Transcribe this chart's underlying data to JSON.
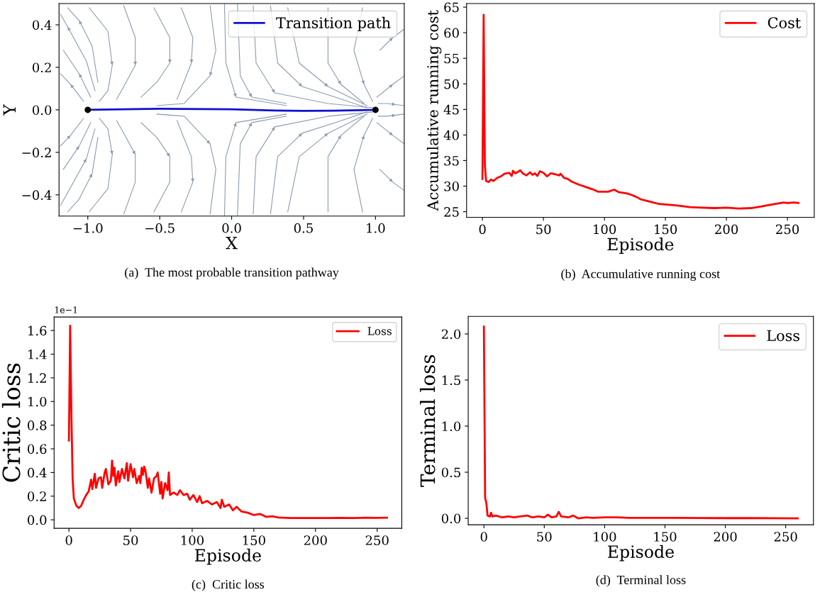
{
  "chart_data": [
    {
      "type": "line",
      "xlabel": "X",
      "ylabel": "Y",
      "xlim": [
        -1.2,
        1.2
      ],
      "ylim": [
        -0.5,
        0.5
      ],
      "xticks": [
        {
          "value": -1.0,
          "label": "−1.0"
        },
        {
          "value": -0.5,
          "label": "−0.5"
        },
        {
          "value": 0.0,
          "label": "0.0"
        },
        {
          "value": 0.5,
          "label": "0.5"
        },
        {
          "value": 1.0,
          "label": "1.0"
        }
      ],
      "yticks": [
        {
          "value": -0.4,
          "label": "−0.4"
        },
        {
          "value": -0.2,
          "label": "−0.2"
        },
        {
          "value": 0.0,
          "label": "0.0"
        },
        {
          "value": 0.2,
          "label": "0.2"
        },
        {
          "value": 0.4,
          "label": "0.4"
        }
      ],
      "legend": "top right",
      "grid": false,
      "series": [
        {
          "name": "Transition path",
          "color": "#1010d0",
          "x": [
            -1,
            -0.5,
            0,
            0.3,
            0.5,
            0.7,
            1
          ],
          "values": [
            0,
            0.005,
            0.003,
            -0.003,
            -0.005,
            -0.004,
            0
          ]
        },
        {
          "type": "scatter",
          "color": "#000000",
          "x": [
            -1,
            1
          ],
          "values": [
            0,
            0
          ]
        },
        {
          "color": "#8a9bb0",
          "x": [
            -1.03,
            -1.12,
            -1.19
          ],
          "values": [
            0.04,
            0.12,
            0.17
          ]
        },
        {
          "color": "#8a9bb0",
          "x": [
            -0.98,
            -1.06,
            -1.17
          ],
          "values": [
            0.06,
            0.17,
            0.28
          ]
        },
        {
          "color": "#8a9bb0",
          "x": [
            -0.95,
            -1.01,
            -1.14,
            -1.19
          ],
          "values": [
            0.09,
            0.23,
            0.39,
            0.45
          ]
        },
        {
          "color": "#8a9bb0",
          "x": [
            -0.93,
            -0.97,
            -1.06,
            -1.14
          ],
          "values": [
            0.13,
            0.3,
            0.42,
            0.48
          ]
        },
        {
          "color": "#8a9bb0",
          "x": [
            -0.99,
            -0.86,
            -0.83,
            -0.86,
            -0.92
          ],
          "values": [
            0.48,
            0.37,
            0.21,
            0.09,
            0.04
          ]
        },
        {
          "color": "#8a9bb0",
          "x": [
            -0.75,
            -0.67,
            -0.67,
            -0.75,
            -0.8
          ],
          "values": [
            0.49,
            0.34,
            0.21,
            0.11,
            0.05
          ]
        },
        {
          "color": "#8a9bb0",
          "x": [
            -0.54,
            -0.43,
            -0.43,
            -0.52,
            -0.63
          ],
          "values": [
            0.48,
            0.34,
            0.22,
            0.13,
            0.06
          ]
        },
        {
          "color": "#8a9bb0",
          "x": [
            -0.35,
            -0.27,
            -0.28,
            -0.38
          ],
          "values": [
            0.48,
            0.34,
            0.22,
            0.05
          ]
        },
        {
          "color": "#8a9bb0",
          "x": [
            -0.15,
            -0.11,
            -0.15,
            -0.33,
            -0.52
          ],
          "values": [
            0.49,
            0.28,
            0.16,
            0.03,
            0.02
          ]
        },
        {
          "color": "#8a9bb0",
          "x": [
            -0.05,
            -0.04,
            0.03,
            0.38
          ],
          "values": [
            0.5,
            0.22,
            0.06,
            0.02
          ]
        },
        {
          "color": "#8a9bb0",
          "x": [
            0.04,
            0.06,
            0.14,
            0.38
          ],
          "values": [
            0.5,
            0.16,
            0.06,
            0.03
          ]
        },
        {
          "color": "#8a9bb0",
          "x": [
            0.15,
            0.17,
            0.3,
            0.67,
            0.98
          ],
          "values": [
            0.49,
            0.22,
            0.08,
            0.03,
            0.01
          ]
        },
        {
          "color": "#8a9bb0",
          "x": [
            0.27,
            0.32,
            0.49,
            0.72,
            0.94
          ],
          "values": [
            0.49,
            0.22,
            0.11,
            0.06,
            0.01
          ]
        },
        {
          "color": "#8a9bb0",
          "x": [
            0.39,
            0.47,
            0.67,
            0.94
          ],
          "values": [
            0.48,
            0.22,
            0.11,
            0.02
          ]
        },
        {
          "color": "#8a9bb0",
          "x": [
            0.67,
            0.67,
            0.76,
            0.92
          ],
          "values": [
            0.48,
            0.22,
            0.12,
            0.03
          ]
        },
        {
          "color": "#8a9bb0",
          "x": [
            0.91,
            0.85,
            0.92,
            0.98
          ],
          "values": [
            0.48,
            0.28,
            0.12,
            0.04
          ]
        },
        {
          "color": "#8a9bb0",
          "x": [
            1.03,
            1.12,
            1.2
          ],
          "values": [
            0.28,
            0.34,
            0.38
          ]
        },
        {
          "color": "#8a9bb0",
          "x": [
            1.01,
            1.12,
            1.2
          ],
          "values": [
            0.06,
            0.12,
            0.16
          ]
        },
        {
          "color": "#8a9bb0",
          "x": [
            1.02,
            1.08,
            1.14,
            1.2
          ],
          "values": [
            0.03,
            0.03,
            0.025,
            0.02
          ]
        },
        {
          "color": "#8a9bb0",
          "x": [
            -1.19,
            -1.12,
            -1.03
          ],
          "values": [
            -0.17,
            -0.12,
            -0.04
          ]
        },
        {
          "color": "#8a9bb0",
          "x": [
            -1.17,
            -1.06,
            -0.98
          ],
          "values": [
            -0.28,
            -0.17,
            -0.06
          ]
        },
        {
          "color": "#8a9bb0",
          "x": [
            -1.19,
            -1.14,
            -1.01,
            -0.95
          ],
          "values": [
            -0.45,
            -0.39,
            -0.23,
            -0.09
          ]
        },
        {
          "color": "#8a9bb0",
          "x": [
            -1.14,
            -1.06,
            -0.97,
            -0.93
          ],
          "values": [
            -0.48,
            -0.42,
            -0.3,
            -0.13
          ]
        },
        {
          "color": "#8a9bb0",
          "x": [
            -0.92,
            -0.86,
            -0.83,
            -0.86,
            -0.99
          ],
          "values": [
            -0.04,
            -0.09,
            -0.21,
            -0.37,
            -0.48
          ]
        },
        {
          "color": "#8a9bb0",
          "x": [
            -0.8,
            -0.75,
            -0.67,
            -0.67,
            -0.75
          ],
          "values": [
            -0.05,
            -0.11,
            -0.21,
            -0.34,
            -0.49
          ]
        },
        {
          "color": "#8a9bb0",
          "x": [
            -0.63,
            -0.52,
            -0.43,
            -0.43,
            -0.54
          ],
          "values": [
            -0.06,
            -0.13,
            -0.22,
            -0.34,
            -0.48
          ]
        },
        {
          "color": "#8a9bb0",
          "x": [
            -0.38,
            -0.28,
            -0.27,
            -0.35
          ],
          "values": [
            -0.05,
            -0.22,
            -0.34,
            -0.48
          ]
        },
        {
          "color": "#8a9bb0",
          "x": [
            -0.52,
            -0.33,
            -0.15,
            -0.11,
            -0.15
          ],
          "values": [
            -0.02,
            -0.03,
            -0.16,
            -0.28,
            -0.49
          ]
        },
        {
          "color": "#8a9bb0",
          "x": [
            -0.05,
            -0.04,
            0.03,
            0.38
          ],
          "values": [
            -0.5,
            -0.22,
            -0.06,
            -0.02
          ]
        },
        {
          "color": "#8a9bb0",
          "x": [
            0.04,
            0.06,
            0.14,
            0.38
          ],
          "values": [
            -0.5,
            -0.16,
            -0.06,
            -0.03
          ]
        },
        {
          "color": "#8a9bb0",
          "x": [
            0.15,
            0.17,
            0.3,
            0.67,
            0.98
          ],
          "values": [
            -0.49,
            -0.22,
            -0.08,
            -0.03,
            -0.01
          ]
        },
        {
          "color": "#8a9bb0",
          "x": [
            0.27,
            0.32,
            0.49,
            0.72,
            0.94
          ],
          "values": [
            -0.49,
            -0.22,
            -0.11,
            -0.06,
            -0.01
          ]
        },
        {
          "color": "#8a9bb0",
          "x": [
            0.39,
            0.47,
            0.67,
            0.94
          ],
          "values": [
            -0.48,
            -0.22,
            -0.11,
            -0.02
          ]
        },
        {
          "color": "#8a9bb0",
          "x": [
            0.67,
            0.67,
            0.76,
            0.92
          ],
          "values": [
            -0.48,
            -0.22,
            -0.12,
            -0.03
          ]
        },
        {
          "color": "#8a9bb0",
          "x": [
            0.91,
            0.85,
            0.92,
            0.98
          ],
          "values": [
            -0.48,
            -0.28,
            -0.12,
            -0.04
          ]
        },
        {
          "color": "#8a9bb0",
          "x": [
            1.03,
            1.12,
            1.2
          ],
          "values": [
            -0.28,
            -0.34,
            -0.38
          ]
        },
        {
          "color": "#8a9bb0",
          "x": [
            1.01,
            1.12,
            1.2
          ],
          "values": [
            -0.06,
            -0.12,
            -0.16
          ]
        },
        {
          "color": "#8a9bb0",
          "x": [
            1.02,
            1.08,
            1.14,
            1.2
          ],
          "values": [
            -0.03,
            -0.03,
            -0.025,
            -0.02
          ]
        }
      ],
      "annotations": [
        "(a)  The most probable transition pathway"
      ]
    },
    {
      "type": "line",
      "xlabel": "Episode",
      "ylabel": "Accumulative running cost",
      "xlim": [
        -13,
        272
      ],
      "ylim": [
        23.9,
        65.7
      ],
      "xticks": [
        0,
        50,
        100,
        150,
        200,
        250
      ],
      "yticks": [
        25,
        30,
        35,
        40,
        45,
        50,
        55,
        60,
        65
      ],
      "legend": "top right",
      "grid": false,
      "series": [
        {
          "name": "Cost",
          "color": "#ff0000",
          "x": [
            0,
            1,
            2,
            3,
            5,
            7,
            9,
            12,
            15,
            18,
            22,
            24,
            25,
            27,
            30,
            31,
            33,
            36,
            39,
            41,
            43,
            45,
            47,
            50,
            53,
            56,
            60,
            63,
            64,
            67,
            70,
            73,
            76,
            80,
            85,
            90,
            95,
            100,
            103,
            108,
            112,
            118,
            122,
            126,
            130,
            135,
            140,
            145,
            150,
            160,
            170,
            180,
            190,
            200,
            210,
            220,
            228,
            235,
            240,
            247,
            250,
            255,
            259
          ],
          "values": [
            31.4,
            63.5,
            34,
            31,
            30.8,
            31.3,
            31.0,
            31.6,
            31.9,
            32.4,
            32.6,
            32.0,
            33.0,
            32.5,
            32.9,
            33.1,
            32.5,
            32.1,
            32.7,
            32.2,
            32.5,
            32.0,
            32.9,
            32.6,
            31.9,
            32.5,
            32.3,
            32.1,
            32.4,
            31.6,
            31.4,
            30.9,
            30.6,
            30.2,
            29.8,
            29.4,
            28.9,
            28.9,
            28.9,
            29.3,
            28.8,
            28.6,
            28.3,
            27.9,
            27.4,
            27.1,
            26.8,
            26.5,
            26.4,
            26.2,
            25.9,
            25.8,
            25.7,
            25.8,
            25.6,
            25.7,
            26.0,
            26.3,
            26.5,
            26.8,
            26.7,
            26.8,
            26.7
          ]
        }
      ],
      "annotations": [
        "(b)  Accumulative running cost"
      ]
    },
    {
      "type": "line",
      "xlabel": "Episode",
      "ylabel": "Critic loss",
      "xlim": [
        -12,
        270
      ],
      "ylim": [
        -0.072,
        1.714
      ],
      "xticks": [
        0,
        50,
        100,
        150,
        200,
        250
      ],
      "yticks": [
        {
          "value": 0.0,
          "label": "0.0"
        },
        {
          "value": 0.2,
          "label": "0.2"
        },
        {
          "value": 0.4,
          "label": "0.4"
        },
        {
          "value": 0.6,
          "label": "0.6"
        },
        {
          "value": 0.8,
          "label": "0.8"
        },
        {
          "value": 1.0,
          "label": "1.0"
        },
        {
          "value": 1.2,
          "label": "1.2"
        },
        {
          "value": 1.4,
          "label": "1.4"
        },
        {
          "value": 1.6,
          "label": "1.6"
        }
      ],
      "legend": "top right",
      "grid": false,
      "series": [
        {
          "name": "Loss",
          "color": "#ff0000",
          "x": [
            0,
            1,
            2,
            3,
            4,
            6,
            8,
            10,
            12,
            14,
            16,
            18,
            19,
            21,
            22,
            24,
            26,
            27,
            29,
            30,
            32,
            34,
            35,
            36,
            37,
            38,
            40,
            41,
            43,
            45,
            47,
            48,
            50,
            52,
            53,
            55,
            57,
            58,
            59,
            60,
            61,
            62,
            64,
            65,
            67,
            69,
            71,
            72,
            74,
            75,
            76,
            78,
            80,
            81,
            82,
            85,
            88,
            90,
            93,
            96,
            98,
            101,
            104,
            106,
            108,
            112,
            116,
            120,
            123,
            124,
            126,
            130,
            133,
            136,
            140,
            145,
            150,
            155,
            160,
            165,
            170,
            180,
            190,
            200,
            210,
            220,
            230,
            240,
            250,
            258
          ],
          "values": [
            0.67,
            1.64,
            0.9,
            0.35,
            0.18,
            0.12,
            0.1,
            0.12,
            0.17,
            0.21,
            0.24,
            0.34,
            0.26,
            0.39,
            0.27,
            0.35,
            0.36,
            0.27,
            0.4,
            0.43,
            0.3,
            0.33,
            0.5,
            0.37,
            0.44,
            0.29,
            0.41,
            0.32,
            0.43,
            0.35,
            0.48,
            0.33,
            0.47,
            0.36,
            0.43,
            0.31,
            0.37,
            0.31,
            0.44,
            0.38,
            0.45,
            0.42,
            0.27,
            0.35,
            0.23,
            0.35,
            0.37,
            0.4,
            0.22,
            0.32,
            0.18,
            0.31,
            0.25,
            0.4,
            0.21,
            0.23,
            0.21,
            0.25,
            0.21,
            0.22,
            0.17,
            0.21,
            0.15,
            0.2,
            0.14,
            0.16,
            0.13,
            0.15,
            0.1,
            0.17,
            0.11,
            0.13,
            0.08,
            0.11,
            0.07,
            0.06,
            0.04,
            0.05,
            0.025,
            0.03,
            0.02,
            0.015,
            0.015,
            0.015,
            0.015,
            0.017,
            0.015,
            0.018,
            0.017,
            0.018
          ]
        }
      ],
      "annotations": [
        "1e−1",
        "(c)  Critic loss"
      ]
    },
    {
      "type": "line",
      "xlabel": "Episode",
      "ylabel": "Terminal loss",
      "xlim": [
        -13,
        273
      ],
      "ylim": [
        -0.07,
        2.19
      ],
      "xticks": [
        0,
        50,
        100,
        150,
        200,
        250
      ],
      "yticks": [
        {
          "value": 0.0,
          "label": "0.0"
        },
        {
          "value": 0.5,
          "label": "0.5"
        },
        {
          "value": 1.0,
          "label": "1.0"
        },
        {
          "value": 1.5,
          "label": "1.5"
        },
        {
          "value": 2.0,
          "label": "2.0"
        }
      ],
      "legend": "top right",
      "grid": false,
      "series": [
        {
          "name": "Loss",
          "color": "#ff0000",
          "x": [
            0,
            1,
            2,
            3,
            5,
            6,
            7,
            10,
            15,
            20,
            25,
            30,
            36,
            40,
            45,
            50,
            53,
            56,
            60,
            62,
            64,
            70,
            74,
            78,
            85,
            90,
            100,
            110,
            120,
            140,
            160,
            180,
            200,
            220,
            240,
            260
          ],
          "values": [
            2.08,
            0.22,
            0.17,
            0.03,
            0.02,
            0.06,
            0.02,
            0.03,
            0.01,
            0.02,
            0.01,
            0.02,
            0.03,
            0.01,
            0.02,
            0.01,
            0.04,
            0.01,
            0.02,
            0.07,
            0.02,
            0.01,
            0.03,
            0.0,
            0.01,
            0.005,
            0.01,
            0.01,
            0.005,
            0.005,
            0.005,
            0.003,
            0.002,
            0.002,
            0.001,
            0.0
          ]
        }
      ],
      "annotations": [
        "(d)  Terminal loss"
      ]
    }
  ]
}
